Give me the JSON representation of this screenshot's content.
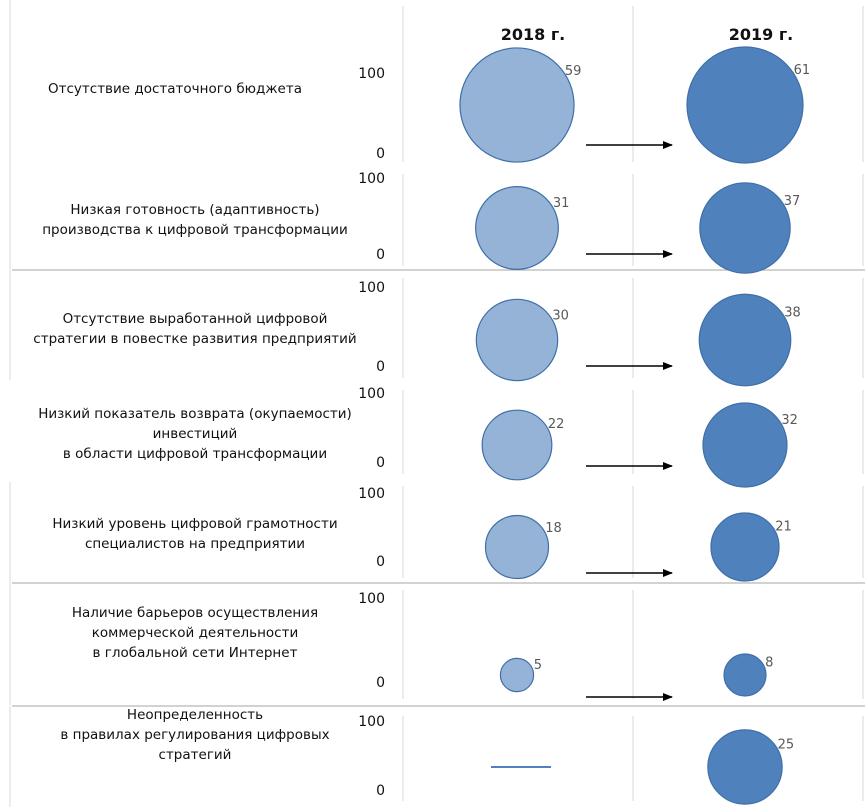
{
  "chart_data": {
    "type": "bubble",
    "years": [
      "2018 г.",
      "2019 г."
    ],
    "ylim": [
      0,
      100
    ],
    "yticks": [
      "100",
      "0"
    ],
    "colors": {
      "2018": "#95b3d7",
      "2019": "#4f81bd",
      "stroke": "#3f6fa8"
    },
    "rows": [
      {
        "label": [
          "Отсутствие достаточного бюджета"
        ],
        "values": [
          59,
          61
        ]
      },
      {
        "label": [
          "Низкая готовность (адаптивность)",
          "производства к цифровой трансформации"
        ],
        "values": [
          31,
          37
        ]
      },
      {
        "label": [
          "Отсутствие выработанной цифровой",
          "стратегии в повестке развития предприятий"
        ],
        "values": [
          30,
          38
        ]
      },
      {
        "label": [
          "Низкий показатель возврата (окупаемости)",
          "инвестиций",
          "в области цифровой трансформации"
        ],
        "values": [
          22,
          32
        ]
      },
      {
        "label": [
          "Низкий уровень цифровой грамотности",
          "специалистов на предприятии"
        ],
        "values": [
          18,
          21
        ]
      },
      {
        "label": [
          "Наличие барьеров осуществления",
          "коммерческой деятельности",
          "в глобальной сети Интернет"
        ],
        "values": [
          5,
          8
        ]
      },
      {
        "label": [
          "Неопределенность",
          "в правилах регулирования цифровых",
          "стратегий"
        ],
        "values": [
          null,
          25
        ]
      }
    ]
  }
}
